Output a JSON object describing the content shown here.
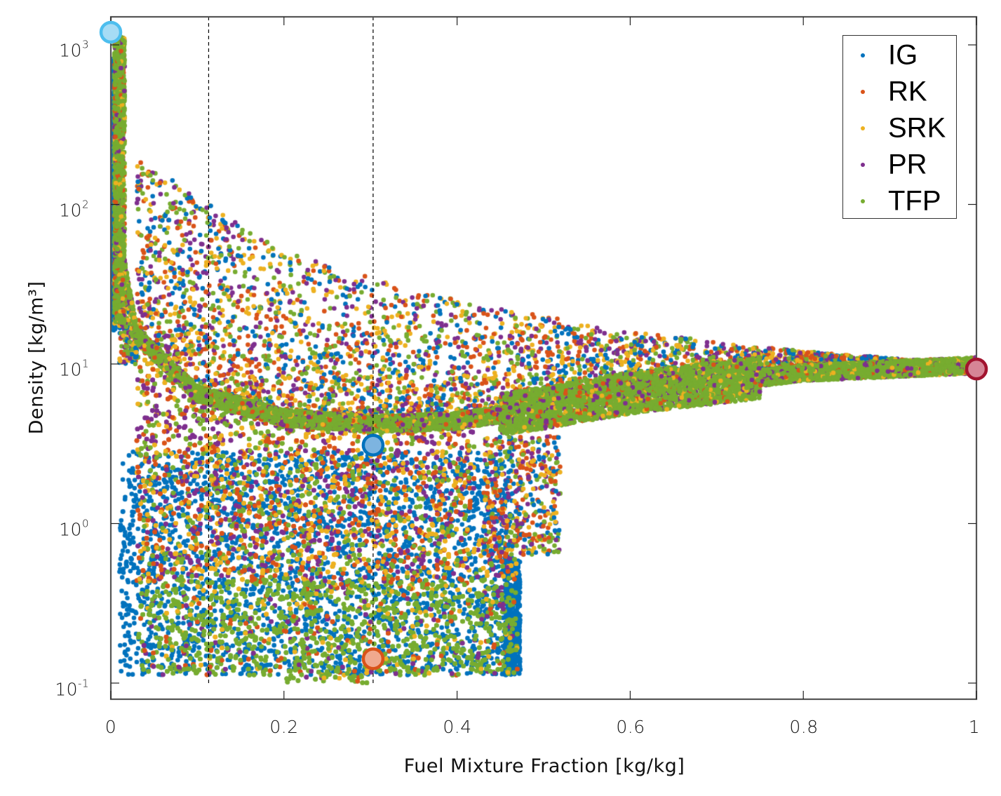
{
  "chart_data": {
    "type": "scatter",
    "title": "",
    "xlabel": "Fuel Mixture Fraction [kg/kg]",
    "ylabel": "Density [kg/m³]",
    "xscale": "linear",
    "yscale": "log",
    "xlim": [
      0,
      1
    ],
    "ylim": [
      0.085,
      1400
    ],
    "grid": false,
    "legend_position": "upper right",
    "x_ticks": [
      {
        "value": 0,
        "label": "0"
      },
      {
        "value": 0.2,
        "label": "0.2"
      },
      {
        "value": 0.4,
        "label": "0.4"
      },
      {
        "value": 0.6,
        "label": "0.6"
      },
      {
        "value": 0.8,
        "label": "0.8"
      },
      {
        "value": 1,
        "label": "1"
      }
    ],
    "y_ticks": [
      {
        "value": 1000,
        "base": "10",
        "exp": "3"
      },
      {
        "value": 100,
        "base": "10",
        "exp": "2"
      },
      {
        "value": 10,
        "base": "10",
        "exp": "1"
      },
      {
        "value": 1,
        "base": "10",
        "exp": "0"
      },
      {
        "value": 0.1,
        "base": "10",
        "exp": "-1"
      }
    ],
    "series": [
      {
        "name": "IG",
        "color": "#0072BD"
      },
      {
        "name": "RK",
        "color": "#D95319"
      },
      {
        "name": "SRK",
        "color": "#EDB120"
      },
      {
        "name": "PR",
        "color": "#7E2F8E"
      },
      {
        "name": "TFP",
        "color": "#77AC30"
      }
    ],
    "reference_lines": [
      {
        "orientation": "vertical",
        "x": 0.113,
        "style": "dashed",
        "color": "#000000"
      },
      {
        "orientation": "vertical",
        "x": 0.303,
        "style": "dashed",
        "color": "#000000"
      }
    ],
    "highlight_points": [
      {
        "name": "pure-oxidizer-point",
        "x": 0.0,
        "y": 1200,
        "fill": "#A6DCF5",
        "edge": "#4DBEEE"
      },
      {
        "name": "stoich-gas-point",
        "x": 0.303,
        "y": 3.1,
        "fill": "#7DB4E0",
        "edge": "#0072BD"
      },
      {
        "name": "stoich-low-density-point",
        "x": 0.303,
        "y": 0.142,
        "fill": "#F0A98E",
        "edge": "#D95319"
      },
      {
        "name": "pure-fuel-point",
        "x": 1.0,
        "y": 9.3,
        "fill": "#D68596",
        "edge": "#A2142F"
      }
    ],
    "data_regions": [
      {
        "desc": "oxidizer-side dense branch",
        "x_range": [
          0.0,
          0.02
        ],
        "y_range": [
          0.1,
          1200
        ]
      },
      {
        "desc": "mixing line (upper arc)",
        "points": [
          [
            0.0,
            1000
          ],
          [
            0.01,
            60
          ],
          [
            0.03,
            15
          ],
          [
            0.1,
            6.5
          ],
          [
            0.2,
            4.6
          ],
          [
            0.3,
            4.2
          ],
          [
            0.4,
            4.4
          ],
          [
            0.5,
            5.3
          ],
          [
            0.6,
            6.6
          ],
          [
            0.8,
            8.8
          ],
          [
            1.0,
            9.8
          ]
        ]
      },
      {
        "desc": "upper scattered envelope",
        "points": [
          [
            0.03,
            200
          ],
          [
            0.14,
            80
          ],
          [
            0.2,
            50
          ],
          [
            0.4,
            25
          ],
          [
            0.6,
            16
          ],
          [
            0.8,
            12
          ],
          [
            1.0,
            10
          ]
        ]
      },
      {
        "desc": "low-density burning cloud",
        "x_range": [
          0.03,
          0.46
        ],
        "y_range": [
          0.09,
          3.0
        ]
      },
      {
        "desc": "IG lower-right boundary",
        "x": 0.47,
        "y_range": [
          0.1,
          0.6
        ]
      }
    ]
  },
  "legend": {
    "items": [
      {
        "label": "IG",
        "color": "#0072BD"
      },
      {
        "label": "RK",
        "color": "#D95319"
      },
      {
        "label": "SRK",
        "color": "#EDB120"
      },
      {
        "label": "PR",
        "color": "#7E2F8E"
      },
      {
        "label": "TFP",
        "color": "#77AC30"
      }
    ]
  },
  "axes": {
    "xlabel": "Fuel Mixture Fraction [kg/kg]",
    "ylabel": "Density [kg/m³]",
    "xticks": [
      "0",
      "0.2",
      "0.4",
      "0.6",
      "0.8",
      "1"
    ],
    "yticks": [
      {
        "base": "10",
        "exp": "3"
      },
      {
        "base": "10",
        "exp": "2"
      },
      {
        "base": "10",
        "exp": "1"
      },
      {
        "base": "10",
        "exp": "0"
      },
      {
        "base": "10",
        "exp": "-1"
      }
    ]
  }
}
